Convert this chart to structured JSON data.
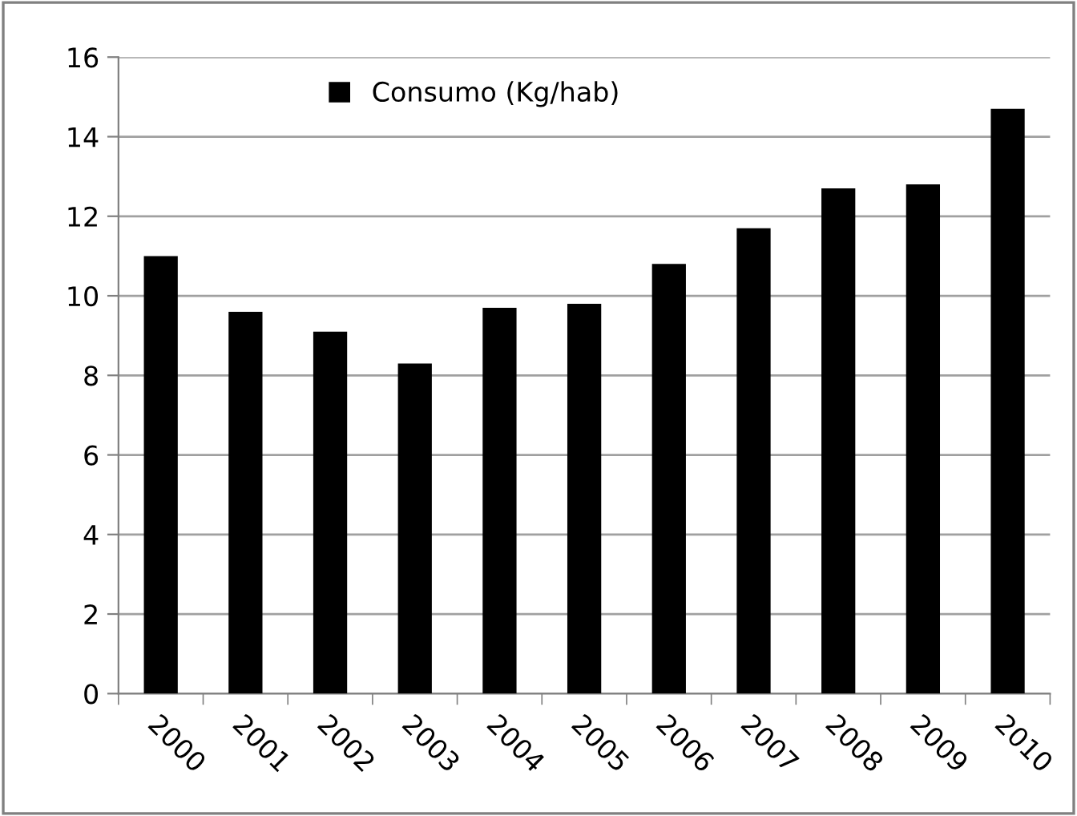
{
  "chart_data": {
    "type": "bar",
    "categories": [
      "2000",
      "2001",
      "2002",
      "2003",
      "2004",
      "2005",
      "2006",
      "2007",
      "2008",
      "2009",
      "2010"
    ],
    "series": [
      {
        "name": "Consumo (Kg/hab)",
        "color": "#000000",
        "values": [
          11.0,
          9.6,
          9.1,
          8.3,
          9.7,
          9.8,
          10.8,
          11.7,
          12.7,
          12.8,
          14.7
        ]
      }
    ],
    "ylim": [
      0,
      16
    ],
    "yticks": [
      0,
      2,
      4,
      6,
      8,
      10,
      12,
      14,
      16
    ],
    "grid": "y",
    "legend": "top left"
  }
}
